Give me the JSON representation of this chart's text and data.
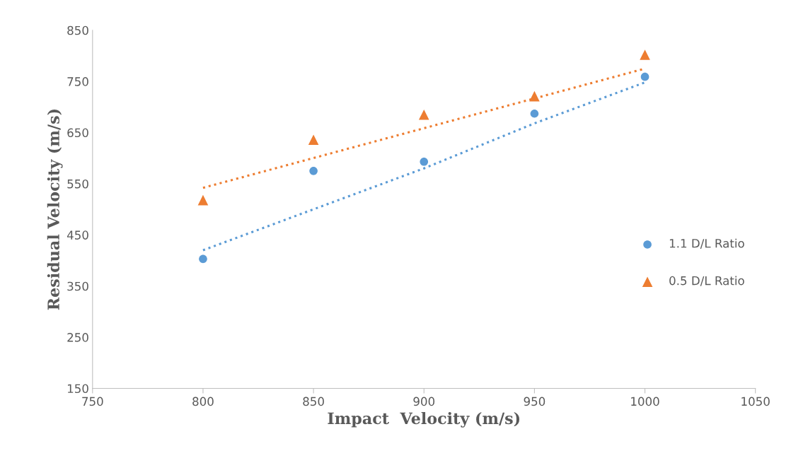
{
  "chart_data": {
    "type": "scatter",
    "xlabel": "Impact  Velocity (m/s)",
    "ylabel": "Residual Velocity (m/s)",
    "xlim": [
      750,
      1050
    ],
    "xticks": [
      750,
      800,
      850,
      900,
      950,
      1000,
      1050
    ],
    "ylim": [
      150,
      850
    ],
    "yticks": [
      150,
      250,
      350,
      450,
      550,
      650,
      750,
      850
    ],
    "grid": false,
    "legend": "right",
    "series": [
      {
        "name": "1.1 D/L Ratio",
        "color": "#5b9bd5",
        "marker": "circle",
        "x": [
          800,
          850,
          900,
          950,
          1000
        ],
        "values": [
          403,
          575,
          593,
          687,
          759
        ]
      },
      {
        "name": "0.5 D/L Ratio",
        "color": "#ed7d31",
        "marker": "triangle",
        "x": [
          800,
          850,
          900,
          950,
          1000
        ],
        "values": [
          518,
          636,
          685,
          721,
          802
        ]
      },
      {
        "type": "line",
        "color": "#5b9bd5",
        "line_style": "dotted",
        "x": [
          800,
          850,
          900,
          950,
          1000
        ],
        "values": [
          420,
          500,
          580,
          668,
          748
        ]
      },
      {
        "type": "line",
        "color": "#ed7d31",
        "line_style": "dotted",
        "x": [
          800,
          1000
        ],
        "values": [
          542,
          775
        ]
      }
    ]
  }
}
